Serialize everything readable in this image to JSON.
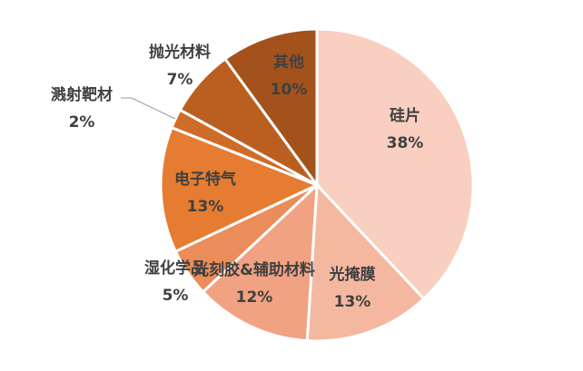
{
  "chart_data": {
    "type": "pie",
    "categories": [
      "硅片",
      "光掩膜",
      "光刻胶&辅助材料",
      "湿化学品",
      "电子特气",
      "溅射靶材",
      "抛光材料",
      "其他"
    ],
    "values": [
      38,
      13,
      12,
      5,
      13,
      2,
      7,
      10
    ],
    "value_labels": [
      "38%",
      "13%",
      "12%",
      "5%",
      "13%",
      "2%",
      "7%",
      "10%"
    ],
    "colors": [
      "#f8cfc0",
      "#f4b8a1",
      "#f0a283",
      "#eb8c5b",
      "#e67c31",
      "#cf6c27",
      "#bb5f21",
      "#a3521b"
    ]
  }
}
